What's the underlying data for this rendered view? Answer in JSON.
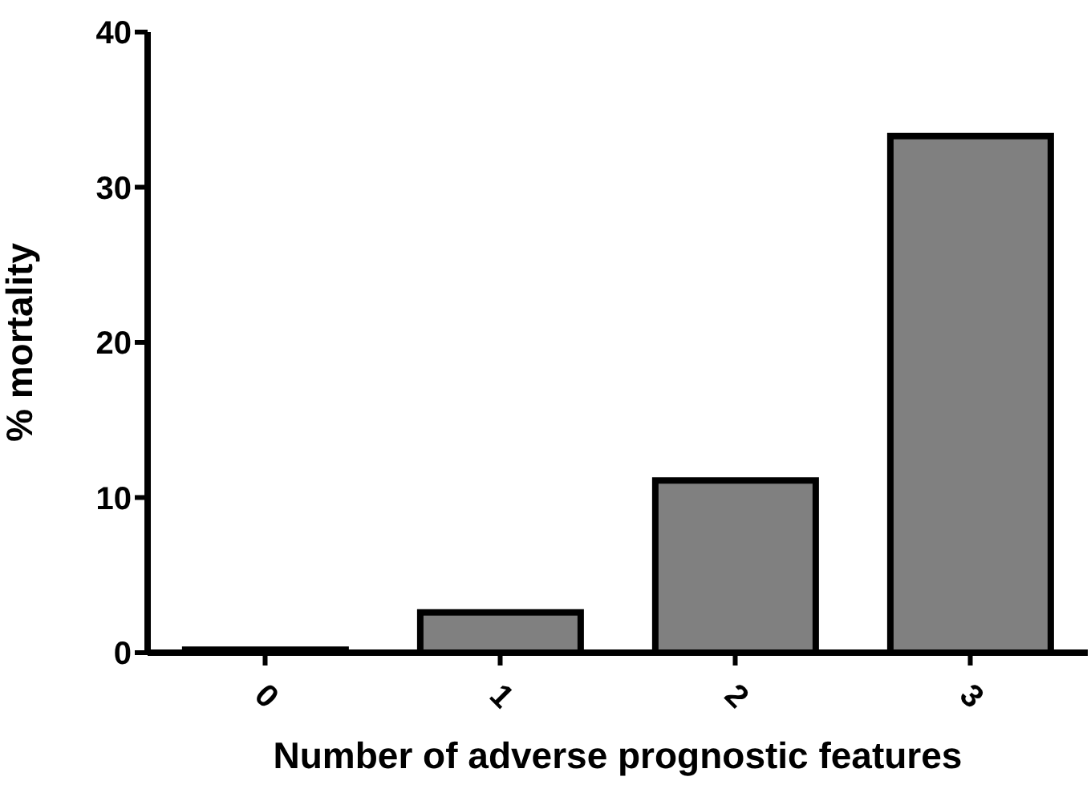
{
  "chart_data": {
    "type": "bar",
    "xlabel": "Number of adverse prognostic features",
    "ylabel": "% mortality",
    "categories": [
      "0",
      "1",
      "2",
      "3"
    ],
    "values": [
      0.2,
      2.6,
      11.1,
      33.3
    ],
    "color": "#808080",
    "ylim": [
      0,
      40
    ],
    "yticks": [
      0,
      10,
      20,
      30,
      40
    ],
    "grid": false
  }
}
